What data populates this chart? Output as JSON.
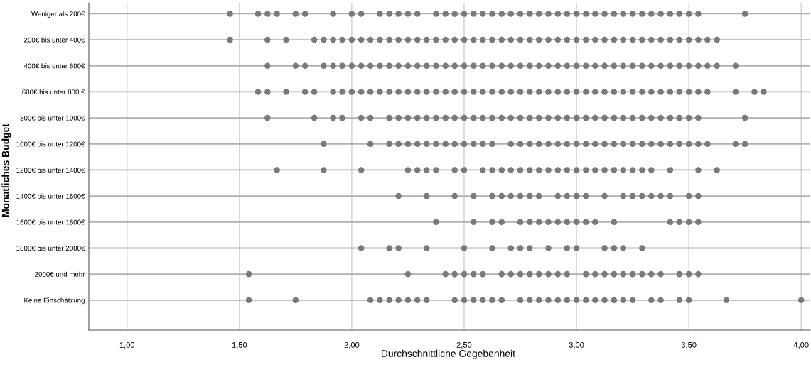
{
  "chart_data": {
    "type": "scatter",
    "orientation": "horizontal",
    "xlabel": "Durchschnittliche Gegebenheit",
    "ylabel": "Monatliches Budget",
    "categories": [
      "Weniger als 200€",
      "200€ bis unter 400€",
      "400€ bis unter 600€",
      "600€ bis unter 800 €",
      "800€ bis unter 1000€",
      "1000€ bis unter 1200€",
      "1200€ bis unter 1400€",
      "1400€ bis unter 1600€",
      "1600€ bis unter 1800€",
      "1800€ bis unter 2000€",
      "2000€ und mehr",
      "Keine Einschätzung"
    ],
    "xlim": [
      0.83,
      4.04
    ],
    "xticks": [
      {
        "value": 1,
        "label": "1,00"
      },
      {
        "value": 1.5,
        "label": "1,50"
      },
      {
        "value": 2,
        "label": "2,00"
      },
      {
        "value": 2.5,
        "label": "2,50"
      },
      {
        "value": 3,
        "label": "3,00"
      },
      {
        "value": 3.5,
        "label": "3,50"
      },
      {
        "value": 4,
        "label": "4,00"
      }
    ],
    "grid": true,
    "marker": "circle",
    "series": [
      {
        "color": "#7a7a7a",
        "x": [
          "Weniger als 200€",
          "Weniger als 200€",
          "Weniger als 200€",
          "Weniger als 200€",
          "Weniger als 200€",
          "Weniger als 200€",
          "Weniger als 200€",
          "Weniger als 200€",
          "Weniger als 200€",
          "Weniger als 200€",
          "Weniger als 200€",
          "Weniger als 200€",
          "Weniger als 200€",
          "Weniger als 200€",
          "Weniger als 200€",
          "Weniger als 200€",
          "Weniger als 200€",
          "Weniger als 200€",
          "Weniger als 200€",
          "Weniger als 200€",
          "Weniger als 200€",
          "Weniger als 200€",
          "Weniger als 200€",
          "Weniger als 200€",
          "Weniger als 200€",
          "Weniger als 200€",
          "Weniger als 200€",
          "Weniger als 200€",
          "Weniger als 200€",
          "Weniger als 200€",
          "Weniger als 200€",
          "Weniger als 200€",
          "Weniger als 200€",
          "Weniger als 200€",
          "Weniger als 200€",
          "Weniger als 200€",
          "Weniger als 200€",
          "Weniger als 200€",
          "Weniger als 200€",
          "Weniger als 200€",
          "Weniger als 200€",
          "Weniger als 200€",
          "Weniger als 200€",
          "Weniger als 200€"
        ],
        "values": [
          1.458,
          1.583,
          1.625,
          1.667,
          1.75,
          1.792,
          1.917,
          2.0,
          2.042,
          2.125,
          2.167,
          2.208,
          2.25,
          2.292,
          2.375,
          2.417,
          2.458,
          2.5,
          2.542,
          2.583,
          2.625,
          2.667,
          2.708,
          2.75,
          2.792,
          2.833,
          2.875,
          2.917,
          2.958,
          3.0,
          3.042,
          3.083,
          3.125,
          3.167,
          3.208,
          3.25,
          3.292,
          3.333,
          3.375,
          3.417,
          3.458,
          3.5,
          3.542,
          3.75
        ]
      },
      {
        "color": "#7a7a7a",
        "x": [
          "200€ bis unter 400€",
          "200€ bis unter 400€",
          "200€ bis unter 400€",
          "200€ bis unter 400€",
          "200€ bis unter 400€",
          "200€ bis unter 400€",
          "200€ bis unter 400€",
          "200€ bis unter 400€",
          "200€ bis unter 400€",
          "200€ bis unter 400€",
          "200€ bis unter 400€",
          "200€ bis unter 400€",
          "200€ bis unter 400€",
          "200€ bis unter 400€",
          "200€ bis unter 400€",
          "200€ bis unter 400€",
          "200€ bis unter 400€",
          "200€ bis unter 400€",
          "200€ bis unter 400€",
          "200€ bis unter 400€",
          "200€ bis unter 400€",
          "200€ bis unter 400€",
          "200€ bis unter 400€",
          "200€ bis unter 400€",
          "200€ bis unter 400€",
          "200€ bis unter 400€",
          "200€ bis unter 400€",
          "200€ bis unter 400€",
          "200€ bis unter 400€",
          "200€ bis unter 400€",
          "200€ bis unter 400€",
          "200€ bis unter 400€",
          "200€ bis unter 400€",
          "200€ bis unter 400€",
          "200€ bis unter 400€",
          "200€ bis unter 400€",
          "200€ bis unter 400€",
          "200€ bis unter 400€",
          "200€ bis unter 400€",
          "200€ bis unter 400€",
          "200€ bis unter 400€",
          "200€ bis unter 400€",
          "200€ bis unter 400€",
          "200€ bis unter 400€",
          "200€ bis unter 400€",
          "200€ bis unter 400€",
          "200€ bis unter 400€"
        ],
        "values": [
          1.458,
          1.625,
          1.708,
          1.833,
          1.875,
          1.917,
          1.958,
          2.0,
          2.042,
          2.083,
          2.125,
          2.167,
          2.208,
          2.25,
          2.292,
          2.333,
          2.375,
          2.417,
          2.458,
          2.5,
          2.542,
          2.583,
          2.625,
          2.667,
          2.708,
          2.75,
          2.792,
          2.833,
          2.875,
          2.917,
          2.958,
          3.0,
          3.042,
          3.083,
          3.125,
          3.167,
          3.208,
          3.25,
          3.292,
          3.333,
          3.375,
          3.417,
          3.458,
          3.5,
          3.542,
          3.583,
          3.625
        ]
      },
      {
        "color": "#7a7a7a",
        "x": [
          "400€ bis unter 600€",
          "400€ bis unter 600€",
          "400€ bis unter 600€",
          "400€ bis unter 600€",
          "400€ bis unter 600€",
          "400€ bis unter 600€",
          "400€ bis unter 600€",
          "400€ bis unter 600€",
          "400€ bis unter 600€",
          "400€ bis unter 600€",
          "400€ bis unter 600€",
          "400€ bis unter 600€",
          "400€ bis unter 600€",
          "400€ bis unter 600€",
          "400€ bis unter 600€",
          "400€ bis unter 600€",
          "400€ bis unter 600€",
          "400€ bis unter 600€",
          "400€ bis unter 600€",
          "400€ bis unter 600€",
          "400€ bis unter 600€",
          "400€ bis unter 600€",
          "400€ bis unter 600€",
          "400€ bis unter 600€",
          "400€ bis unter 600€",
          "400€ bis unter 600€",
          "400€ bis unter 600€",
          "400€ bis unter 600€",
          "400€ bis unter 600€",
          "400€ bis unter 600€",
          "400€ bis unter 600€",
          "400€ bis unter 600€",
          "400€ bis unter 600€",
          "400€ bis unter 600€",
          "400€ bis unter 600€",
          "400€ bis unter 600€",
          "400€ bis unter 600€",
          "400€ bis unter 600€",
          "400€ bis unter 600€",
          "400€ bis unter 600€",
          "400€ bis unter 600€",
          "400€ bis unter 600€",
          "400€ bis unter 600€",
          "400€ bis unter 600€",
          "400€ bis unter 600€",
          "400€ bis unter 600€",
          "400€ bis unter 600€"
        ],
        "values": [
          1.625,
          1.75,
          1.792,
          1.875,
          1.917,
          1.958,
          2.0,
          2.042,
          2.083,
          2.125,
          2.167,
          2.208,
          2.25,
          2.292,
          2.333,
          2.375,
          2.417,
          2.458,
          2.5,
          2.542,
          2.583,
          2.625,
          2.667,
          2.708,
          2.75,
          2.792,
          2.833,
          2.875,
          2.917,
          2.958,
          3.0,
          3.042,
          3.083,
          3.125,
          3.167,
          3.208,
          3.25,
          3.292,
          3.333,
          3.375,
          3.417,
          3.458,
          3.5,
          3.542,
          3.583,
          3.625,
          3.708
        ]
      },
      {
        "color": "#7a7a7a",
        "x": [
          "600€ bis unter 800 €",
          "600€ bis unter 800 €",
          "600€ bis unter 800 €",
          "600€ bis unter 800 €",
          "600€ bis unter 800 €",
          "600€ bis unter 800 €",
          "600€ bis unter 800 €",
          "600€ bis unter 800 €",
          "600€ bis unter 800 €",
          "600€ bis unter 800 €",
          "600€ bis unter 800 €",
          "600€ bis unter 800 €",
          "600€ bis unter 800 €",
          "600€ bis unter 800 €",
          "600€ bis unter 800 €",
          "600€ bis unter 800 €",
          "600€ bis unter 800 €",
          "600€ bis unter 800 €",
          "600€ bis unter 800 €",
          "600€ bis unter 800 €",
          "600€ bis unter 800 €",
          "600€ bis unter 800 €",
          "600€ bis unter 800 €",
          "600€ bis unter 800 €",
          "600€ bis unter 800 €",
          "600€ bis unter 800 €",
          "600€ bis unter 800 €",
          "600€ bis unter 800 €",
          "600€ bis unter 800 €",
          "600€ bis unter 800 €",
          "600€ bis unter 800 €",
          "600€ bis unter 800 €",
          "600€ bis unter 800 €",
          "600€ bis unter 800 €",
          "600€ bis unter 800 €",
          "600€ bis unter 800 €",
          "600€ bis unter 800 €",
          "600€ bis unter 800 €",
          "600€ bis unter 800 €",
          "600€ bis unter 800 €",
          "600€ bis unter 800 €",
          "600€ bis unter 800 €",
          "600€ bis unter 800 €",
          "600€ bis unter 800 €",
          "600€ bis unter 800 €",
          "600€ bis unter 800 €",
          "600€ bis unter 800 €",
          "600€ bis unter 800 €",
          "600€ bis unter 800 €"
        ],
        "values": [
          1.583,
          1.625,
          1.708,
          1.792,
          1.833,
          1.917,
          1.958,
          2.0,
          2.042,
          2.083,
          2.125,
          2.167,
          2.208,
          2.25,
          2.292,
          2.333,
          2.375,
          2.417,
          2.458,
          2.5,
          2.542,
          2.583,
          2.625,
          2.667,
          2.708,
          2.75,
          2.792,
          2.833,
          2.875,
          2.917,
          2.958,
          3.0,
          3.042,
          3.083,
          3.125,
          3.167,
          3.208,
          3.25,
          3.292,
          3.333,
          3.375,
          3.417,
          3.458,
          3.5,
          3.542,
          3.583,
          3.708,
          3.792,
          3.833
        ]
      },
      {
        "color": "#7a7a7a",
        "x": [
          "800€ bis unter 1000€",
          "800€ bis unter 1000€",
          "800€ bis unter 1000€",
          "800€ bis unter 1000€",
          "800€ bis unter 1000€",
          "800€ bis unter 1000€",
          "800€ bis unter 1000€",
          "800€ bis unter 1000€",
          "800€ bis unter 1000€",
          "800€ bis unter 1000€",
          "800€ bis unter 1000€",
          "800€ bis unter 1000€",
          "800€ bis unter 1000€",
          "800€ bis unter 1000€",
          "800€ bis unter 1000€",
          "800€ bis unter 1000€",
          "800€ bis unter 1000€",
          "800€ bis unter 1000€",
          "800€ bis unter 1000€",
          "800€ bis unter 1000€",
          "800€ bis unter 1000€",
          "800€ bis unter 1000€",
          "800€ bis unter 1000€",
          "800€ bis unter 1000€",
          "800€ bis unter 1000€",
          "800€ bis unter 1000€",
          "800€ bis unter 1000€",
          "800€ bis unter 1000€",
          "800€ bis unter 1000€",
          "800€ bis unter 1000€",
          "800€ bis unter 1000€",
          "800€ bis unter 1000€",
          "800€ bis unter 1000€",
          "800€ bis unter 1000€",
          "800€ bis unter 1000€",
          "800€ bis unter 1000€",
          "800€ bis unter 1000€",
          "800€ bis unter 1000€",
          "800€ bis unter 1000€",
          "800€ bis unter 1000€",
          "800€ bis unter 1000€"
        ],
        "values": [
          1.625,
          1.833,
          1.917,
          1.958,
          2.042,
          2.083,
          2.167,
          2.208,
          2.25,
          2.292,
          2.333,
          2.375,
          2.417,
          2.458,
          2.5,
          2.542,
          2.583,
          2.625,
          2.667,
          2.708,
          2.75,
          2.792,
          2.833,
          2.875,
          2.917,
          2.958,
          3.0,
          3.042,
          3.083,
          3.125,
          3.167,
          3.208,
          3.25,
          3.292,
          3.333,
          3.375,
          3.417,
          3.458,
          3.5,
          3.542,
          3.75
        ]
      },
      {
        "color": "#7a7a7a",
        "x": [
          "1000€ bis unter 1200€",
          "1000€ bis unter 1200€",
          "1000€ bis unter 1200€",
          "1000€ bis unter 1200€",
          "1000€ bis unter 1200€",
          "1000€ bis unter 1200€",
          "1000€ bis unter 1200€",
          "1000€ bis unter 1200€",
          "1000€ bis unter 1200€",
          "1000€ bis unter 1200€",
          "1000€ bis unter 1200€",
          "1000€ bis unter 1200€",
          "1000€ bis unter 1200€",
          "1000€ bis unter 1200€",
          "1000€ bis unter 1200€",
          "1000€ bis unter 1200€",
          "1000€ bis unter 1200€",
          "1000€ bis unter 1200€",
          "1000€ bis unter 1200€",
          "1000€ bis unter 1200€",
          "1000€ bis unter 1200€",
          "1000€ bis unter 1200€",
          "1000€ bis unter 1200€",
          "1000€ bis unter 1200€",
          "1000€ bis unter 1200€",
          "1000€ bis unter 1200€",
          "1000€ bis unter 1200€",
          "1000€ bis unter 1200€",
          "1000€ bis unter 1200€",
          "1000€ bis unter 1200€",
          "1000€ bis unter 1200€",
          "1000€ bis unter 1200€",
          "1000€ bis unter 1200€",
          "1000€ bis unter 1200€",
          "1000€ bis unter 1200€",
          "1000€ bis unter 1200€",
          "1000€ bis unter 1200€",
          "1000€ bis unter 1200€"
        ],
        "values": [
          1.875,
          2.083,
          2.167,
          2.208,
          2.25,
          2.292,
          2.333,
          2.375,
          2.417,
          2.458,
          2.5,
          2.542,
          2.583,
          2.625,
          2.708,
          2.75,
          2.792,
          2.833,
          2.875,
          2.917,
          2.958,
          3.0,
          3.042,
          3.083,
          3.125,
          3.167,
          3.208,
          3.25,
          3.292,
          3.333,
          3.375,
          3.417,
          3.458,
          3.5,
          3.542,
          3.583,
          3.708,
          3.75
        ]
      },
      {
        "color": "#7a7a7a",
        "x": [
          "1200€ bis unter 1400€",
          "1200€ bis unter 1400€",
          "1200€ bis unter 1400€",
          "1200€ bis unter 1400€",
          "1200€ bis unter 1400€",
          "1200€ bis unter 1400€",
          "1200€ bis unter 1400€",
          "1200€ bis unter 1400€",
          "1200€ bis unter 1400€",
          "1200€ bis unter 1400€",
          "1200€ bis unter 1400€",
          "1200€ bis unter 1400€",
          "1200€ bis unter 1400€",
          "1200€ bis unter 1400€",
          "1200€ bis unter 1400€",
          "1200€ bis unter 1400€",
          "1200€ bis unter 1400€",
          "1200€ bis unter 1400€",
          "1200€ bis unter 1400€",
          "1200€ bis unter 1400€",
          "1200€ bis unter 1400€",
          "1200€ bis unter 1400€",
          "1200€ bis unter 1400€",
          "1200€ bis unter 1400€",
          "1200€ bis unter 1400€",
          "1200€ bis unter 1400€",
          "1200€ bis unter 1400€",
          "1200€ bis unter 1400€",
          "1200€ bis unter 1400€",
          "1200€ bis unter 1400€",
          "1200€ bis unter 1400€"
        ],
        "values": [
          1.667,
          1.875,
          2.042,
          2.25,
          2.292,
          2.333,
          2.375,
          2.458,
          2.5,
          2.583,
          2.625,
          2.667,
          2.708,
          2.75,
          2.792,
          2.833,
          2.875,
          2.917,
          2.958,
          3.0,
          3.042,
          3.083,
          3.125,
          3.167,
          3.208,
          3.25,
          3.292,
          3.333,
          3.417,
          3.542,
          3.625
        ]
      },
      {
        "color": "#7a7a7a",
        "x": [
          "1400€ bis unter 1600€",
          "1400€ bis unter 1600€",
          "1400€ bis unter 1600€",
          "1400€ bis unter 1600€",
          "1400€ bis unter 1600€",
          "1400€ bis unter 1600€",
          "1400€ bis unter 1600€",
          "1400€ bis unter 1600€",
          "1400€ bis unter 1600€",
          "1400€ bis unter 1600€",
          "1400€ bis unter 1600€",
          "1400€ bis unter 1600€",
          "1400€ bis unter 1600€",
          "1400€ bis unter 1600€",
          "1400€ bis unter 1600€",
          "1400€ bis unter 1600€",
          "1400€ bis unter 1600€",
          "1400€ bis unter 1600€",
          "1400€ bis unter 1600€",
          "1400€ bis unter 1600€",
          "1400€ bis unter 1600€",
          "1400€ bis unter 1600€",
          "1400€ bis unter 1600€"
        ],
        "values": [
          2.208,
          2.333,
          2.458,
          2.542,
          2.625,
          2.667,
          2.708,
          2.75,
          2.792,
          2.833,
          2.917,
          2.958,
          3.0,
          3.042,
          3.125,
          3.208,
          3.25,
          3.292,
          3.333,
          3.375,
          3.417,
          3.5,
          3.542
        ]
      },
      {
        "color": "#7a7a7a",
        "x": [
          "1600€ bis unter 1800€",
          "1600€ bis unter 1800€",
          "1600€ bis unter 1800€",
          "1600€ bis unter 1800€",
          "1600€ bis unter 1800€",
          "1600€ bis unter 1800€",
          "1600€ bis unter 1800€",
          "1600€ bis unter 1800€",
          "1600€ bis unter 1800€",
          "1600€ bis unter 1800€",
          "1600€ bis unter 1800€",
          "1600€ bis unter 1800€",
          "1600€ bis unter 1800€",
          "1600€ bis unter 1800€",
          "1600€ bis unter 1800€",
          "1600€ bis unter 1800€",
          "1600€ bis unter 1800€",
          "1600€ bis unter 1800€"
        ],
        "values": [
          2.375,
          2.542,
          2.625,
          2.667,
          2.75,
          2.792,
          2.833,
          2.875,
          2.917,
          2.958,
          3.0,
          3.042,
          3.083,
          3.167,
          3.417,
          3.458,
          3.5,
          3.542
        ]
      },
      {
        "color": "#7a7a7a",
        "x": [
          "1800€ bis unter 2000€",
          "1800€ bis unter 2000€",
          "1800€ bis unter 2000€",
          "1800€ bis unter 2000€",
          "1800€ bis unter 2000€",
          "1800€ bis unter 2000€",
          "1800€ bis unter 2000€",
          "1800€ bis unter 2000€",
          "1800€ bis unter 2000€",
          "1800€ bis unter 2000€",
          "1800€ bis unter 2000€",
          "1800€ bis unter 2000€",
          "1800€ bis unter 2000€",
          "1800€ bis unter 2000€",
          "1800€ bis unter 2000€",
          "1800€ bis unter 2000€"
        ],
        "values": [
          2.042,
          2.167,
          2.208,
          2.333,
          2.5,
          2.625,
          2.708,
          2.75,
          2.792,
          2.875,
          2.958,
          3.0,
          3.125,
          3.167,
          3.208,
          3.292
        ]
      },
      {
        "color": "#7a7a7a",
        "x": [
          "2000€ und mehr",
          "2000€ und mehr",
          "2000€ und mehr",
          "2000€ und mehr",
          "2000€ und mehr",
          "2000€ und mehr",
          "2000€ und mehr",
          "2000€ und mehr",
          "2000€ und mehr",
          "2000€ und mehr",
          "2000€ und mehr",
          "2000€ und mehr",
          "2000€ und mehr",
          "2000€ und mehr",
          "2000€ und mehr",
          "2000€ und mehr",
          "2000€ und mehr",
          "2000€ und mehr",
          "2000€ und mehr",
          "2000€ und mehr",
          "2000€ und mehr",
          "2000€ und mehr",
          "2000€ und mehr",
          "2000€ und mehr",
          "2000€ und mehr",
          "2000€ und mehr",
          "2000€ und mehr"
        ],
        "values": [
          1.542,
          2.25,
          2.417,
          2.458,
          2.5,
          2.542,
          2.583,
          2.667,
          2.708,
          2.75,
          2.792,
          2.833,
          2.875,
          2.917,
          2.958,
          3.042,
          3.083,
          3.125,
          3.167,
          3.208,
          3.25,
          3.292,
          3.333,
          3.375,
          3.458,
          3.5,
          3.542
        ]
      },
      {
        "color": "#7a7a7a",
        "x": [
          "Keine Einschätzung",
          "Keine Einschätzung",
          "Keine Einschätzung",
          "Keine Einschätzung",
          "Keine Einschätzung",
          "Keine Einschätzung",
          "Keine Einschätzung",
          "Keine Einschätzung",
          "Keine Einschätzung",
          "Keine Einschätzung",
          "Keine Einschätzung",
          "Keine Einschätzung",
          "Keine Einschätzung",
          "Keine Einschätzung",
          "Keine Einschätzung",
          "Keine Einschätzung",
          "Keine Einschätzung",
          "Keine Einschätzung",
          "Keine Einschätzung",
          "Keine Einschätzung",
          "Keine Einschätzung",
          "Keine Einschätzung",
          "Keine Einschätzung",
          "Keine Einschätzung",
          "Keine Einschätzung",
          "Keine Einschätzung",
          "Keine Einschätzung",
          "Keine Einschätzung",
          "Keine Einschätzung",
          "Keine Einschätzung",
          "Keine Einschätzung",
          "Keine Einschätzung",
          "Keine Einschätzung",
          "Keine Einschätzung"
        ],
        "values": [
          1.542,
          1.75,
          2.083,
          2.125,
          2.167,
          2.208,
          2.25,
          2.292,
          2.333,
          2.458,
          2.5,
          2.542,
          2.583,
          2.625,
          2.667,
          2.75,
          2.792,
          2.833,
          2.875,
          2.917,
          2.958,
          3.0,
          3.042,
          3.083,
          3.125,
          3.167,
          3.208,
          3.25,
          3.333,
          3.375,
          3.458,
          3.5,
          3.667,
          4.0
        ]
      }
    ]
  }
}
